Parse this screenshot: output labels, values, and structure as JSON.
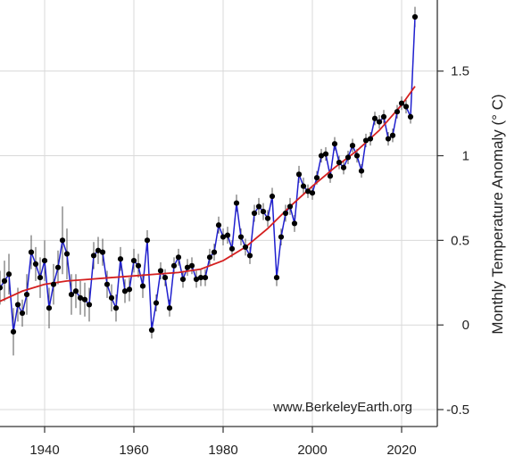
{
  "chart_data": {
    "type": "line",
    "ylabel": "Monthly Temperature Anomaly (° C)",
    "watermark": "www.BerkeleyEarth.org",
    "xlim": [
      1930,
      2028
    ],
    "ylim": [
      -0.6,
      1.92
    ],
    "x_ticks": [
      1940,
      1960,
      1980,
      2000,
      2020
    ],
    "y_ticks": [
      -0.5,
      0,
      0.5,
      1,
      1.5
    ],
    "y_tick_labels": [
      "-0.5",
      "0",
      "0.5",
      "1",
      "1.5"
    ],
    "grid": true,
    "colors": {
      "series_line": "#1f1fcf",
      "trend_line": "#d41f1f",
      "points": "#000000",
      "error_bars": "#555555",
      "grid": "#d9d9d9",
      "axis": "#333333"
    },
    "series": [
      {
        "x": [
          1930,
          1931,
          1932,
          1933,
          1934,
          1935,
          1936,
          1937,
          1938,
          1939,
          1940,
          1941,
          1942,
          1943,
          1944,
          1945,
          1946,
          1947,
          1948,
          1949,
          1950,
          1951,
          1952,
          1953,
          1954,
          1955,
          1956,
          1957,
          1958,
          1959,
          1960,
          1961,
          1962,
          1963,
          1964,
          1965,
          1966,
          1967,
          1968,
          1969,
          1970,
          1971,
          1972,
          1973,
          1974,
          1975,
          1976,
          1977,
          1978,
          1979,
          1980,
          1981,
          1982,
          1983,
          1984,
          1985,
          1986,
          1987,
          1988,
          1989,
          1990,
          1991,
          1992,
          1993,
          1994,
          1995,
          1996,
          1997,
          1998,
          1999,
          2000,
          2001,
          2002,
          2003,
          2004,
          2005,
          2006,
          2007,
          2008,
          2009,
          2010,
          2011,
          2012,
          2013,
          2014,
          2015,
          2016,
          2017,
          2018,
          2019,
          2020,
          2021,
          2022,
          2023
        ],
        "values": [
          0.22,
          0.26,
          0.3,
          -0.04,
          0.12,
          0.07,
          0.18,
          0.43,
          0.36,
          0.28,
          0.38,
          0.1,
          0.24,
          0.34,
          0.5,
          0.42,
          0.18,
          0.2,
          0.16,
          0.15,
          0.12,
          0.41,
          0.44,
          0.43,
          0.24,
          0.16,
          0.1,
          0.39,
          0.2,
          0.21,
          0.38,
          0.35,
          0.23,
          0.5,
          -0.03,
          0.13,
          0.32,
          0.28,
          0.1,
          0.35,
          0.4,
          0.27,
          0.34,
          0.35,
          0.27,
          0.28,
          0.28,
          0.4,
          0.43,
          0.59,
          0.52,
          0.53,
          0.45,
          0.72,
          0.52,
          0.46,
          0.41,
          0.66,
          0.7,
          0.67,
          0.63,
          0.76,
          0.28,
          0.52,
          0.66,
          0.7,
          0.6,
          0.89,
          0.82,
          0.79,
          0.78,
          0.87,
          1.0,
          1.01,
          0.88,
          1.07,
          0.96,
          0.93,
          0.99,
          1.06,
          1.0,
          0.91,
          1.09,
          1.1,
          1.22,
          1.2,
          1.23,
          1.1,
          1.12,
          1.26,
          1.31,
          1.29,
          1.23,
          1.82
        ],
        "errors": [
          0.1,
          0.12,
          0.12,
          0.14,
          0.1,
          0.08,
          0.12,
          0.1,
          0.1,
          0.12,
          0.12,
          0.12,
          0.12,
          0.1,
          0.2,
          0.15,
          0.12,
          0.1,
          0.1,
          0.1,
          0.1,
          0.08,
          0.08,
          0.08,
          0.08,
          0.08,
          0.08,
          0.07,
          0.07,
          0.07,
          0.07,
          0.07,
          0.07,
          0.06,
          0.05,
          0.05,
          0.05,
          0.05,
          0.05,
          0.05,
          0.05,
          0.05,
          0.05,
          0.05,
          0.05,
          0.05,
          0.05,
          0.05,
          0.05,
          0.05,
          0.05,
          0.05,
          0.05,
          0.05,
          0.05,
          0.05,
          0.05,
          0.05,
          0.05,
          0.05,
          0.05,
          0.05,
          0.05,
          0.05,
          0.05,
          0.05,
          0.05,
          0.05,
          0.05,
          0.04,
          0.04,
          0.04,
          0.04,
          0.04,
          0.04,
          0.04,
          0.04,
          0.04,
          0.04,
          0.04,
          0.04,
          0.04,
          0.04,
          0.04,
          0.04,
          0.04,
          0.04,
          0.04,
          0.04,
          0.04,
          0.04,
          0.04,
          0.04,
          0.06
        ]
      },
      {
        "x": [
          1930,
          1935,
          1940,
          1945,
          1950,
          1955,
          1960,
          1965,
          1970,
          1975,
          1980,
          1985,
          1990,
          1995,
          2000,
          2005,
          2010,
          2015,
          2020,
          2023
        ],
        "values": [
          0.14,
          0.2,
          0.24,
          0.26,
          0.27,
          0.28,
          0.29,
          0.3,
          0.31,
          0.33,
          0.38,
          0.46,
          0.57,
          0.7,
          0.82,
          0.93,
          1.03,
          1.15,
          1.3,
          1.41
        ]
      }
    ]
  }
}
